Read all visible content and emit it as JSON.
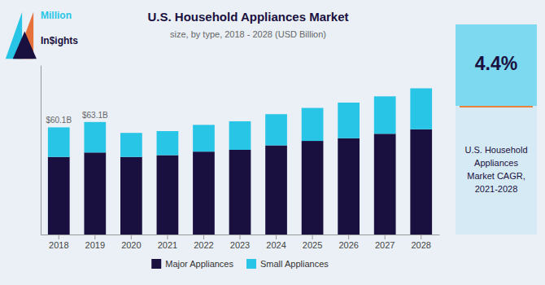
{
  "chart_data": {
    "type": "bar",
    "title": "U.S. Household Appliances Market",
    "subtitle": "size, by type, 2018 - 2028 (USD Billion)",
    "categories": [
      "2018",
      "2019",
      "2020",
      "2021",
      "2022",
      "2023",
      "2024",
      "2025",
      "2026",
      "2027",
      "2028"
    ],
    "series": [
      {
        "name": "Major Appliances",
        "color": "#1a1040",
        "values": [
          43.5,
          46.0,
          43.5,
          44.5,
          46.5,
          47.5,
          50.0,
          52.5,
          54.0,
          56.5,
          59.0
        ]
      },
      {
        "name": "Small Appliances",
        "color": "#29c5e6",
        "values": [
          16.6,
          17.1,
          13.5,
          13.5,
          15.0,
          16.0,
          17.5,
          18.5,
          20.0,
          21.0,
          23.0
        ]
      }
    ],
    "stacked": true,
    "ylim": [
      0,
      95
    ],
    "grid": false,
    "legend": "bottom",
    "tick_labels": "x",
    "annotations": [
      {
        "text": "$60.1B",
        "x": "2018"
      },
      {
        "text": "$63.1B",
        "x": "2019"
      },
      {
        "text": "4.4%"
      },
      {
        "text": "U.S. Household\nAppliances\nMarket CAGR,\n2021-2028"
      },
      {
        "text": "Million"
      },
      {
        "text": "In$ights"
      }
    ]
  }
}
